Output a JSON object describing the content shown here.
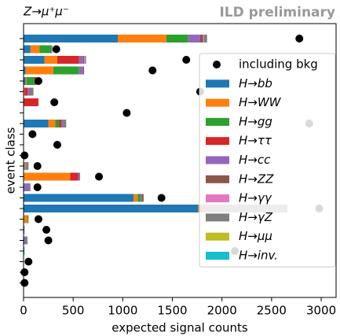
{
  "chart_data": {
    "type": "bar",
    "orientation": "horizontal",
    "stacked": true,
    "title": "Z→μ⁺μ⁻",
    "annotation": "ILD preliminary",
    "xlabel": "expected signal counts",
    "ylabel": "event class",
    "categories": [
      null,
      null,
      null,
      null,
      null,
      null,
      null,
      null,
      null,
      null,
      null,
      null,
      null,
      null,
      null,
      null,
      null,
      null,
      null,
      null,
      null,
      null,
      null,
      null
    ],
    "series": [
      {
        "name": "H→bb",
        "color": "#1f77b4",
        "values": [
          950,
          70,
          210,
          20,
          20,
          0,
          0,
          0,
          250,
          0,
          0,
          0,
          10,
          0,
          10,
          1110,
          1760,
          0,
          0,
          10,
          0,
          0,
          0,
          0
        ]
      },
      {
        "name": "H→WW",
        "color": "#ff7f0e",
        "values": [
          490,
          90,
          130,
          280,
          10,
          10,
          0,
          0,
          70,
          0,
          0,
          0,
          10,
          470,
          0,
          40,
          20,
          40,
          0,
          0,
          0,
          0,
          0,
          0
        ]
      },
      {
        "name": "H→gg",
        "color": "#2ca02c",
        "values": [
          220,
          120,
          0,
          260,
          80,
          0,
          0,
          0,
          40,
          0,
          0,
          0,
          0,
          0,
          0,
          30,
          10,
          10,
          0,
          0,
          0,
          0,
          0,
          0
        ]
      },
      {
        "name": "H→ττ",
        "color": "#d62728",
        "values": [
          0,
          0,
          220,
          0,
          20,
          30,
          150,
          0,
          20,
          0,
          0,
          0,
          0,
          80,
          0,
          0,
          10,
          0,
          0,
          0,
          0,
          0,
          0,
          0
        ]
      },
      {
        "name": "H→cc",
        "color": "#9467bd",
        "values": [
          120,
          10,
          40,
          40,
          0,
          20,
          0,
          0,
          20,
          0,
          0,
          0,
          10,
          20,
          50,
          10,
          20,
          0,
          0,
          10,
          0,
          0,
          0,
          0
        ]
      },
      {
        "name": "H→ZZ",
        "color": "#8c564b",
        "values": [
          30,
          0,
          10,
          10,
          0,
          10,
          0,
          0,
          0,
          0,
          0,
          0,
          0,
          0,
          0,
          20,
          10,
          0,
          0,
          0,
          0,
          0,
          0,
          0
        ]
      },
      {
        "name": "H→γγ",
        "color": "#e377c2",
        "values": [
          10,
          0,
          10,
          0,
          0,
          0,
          0,
          0,
          0,
          0,
          0,
          0,
          0,
          0,
          0,
          0,
          0,
          0,
          0,
          0,
          0,
          0,
          0,
          0
        ]
      },
      {
        "name": "H→γZ",
        "color": "#7f7f7f",
        "values": [
          30,
          0,
          10,
          0,
          0,
          30,
          0,
          0,
          30,
          0,
          0,
          0,
          20,
          0,
          10,
          0,
          830,
          0,
          10,
          20,
          0,
          0,
          0,
          0
        ]
      },
      {
        "name": "H→μμ",
        "color": "#bcbd22",
        "values": [
          0,
          0,
          0,
          0,
          0,
          0,
          0,
          0,
          0,
          0,
          0,
          0,
          0,
          0,
          0,
          0,
          0,
          0,
          0,
          0,
          0,
          0,
          0,
          0
        ]
      },
      {
        "name": "H→inv.",
        "color": "#17becf",
        "values": [
          0,
          0,
          0,
          0,
          0,
          0,
          0,
          0,
          0,
          0,
          0,
          0,
          0,
          0,
          0,
          0,
          0,
          0,
          0,
          0,
          10,
          0,
          0,
          0
        ]
      }
    ],
    "points": {
      "name": "including bkg",
      "color": "#000000",
      "values": [
        2780,
        330,
        1640,
        1300,
        150,
        1780,
        310,
        1040,
        2880,
        90,
        340,
        10,
        140,
        760,
        140,
        1390,
        2980,
        150,
        230,
        250,
        2130,
        50,
        10,
        10
      ]
    },
    "xlim": [
      0,
      3150
    ],
    "xticks": [
      0,
      500,
      1000,
      1500,
      2000,
      2500,
      3000
    ],
    "legend": "upper right"
  }
}
